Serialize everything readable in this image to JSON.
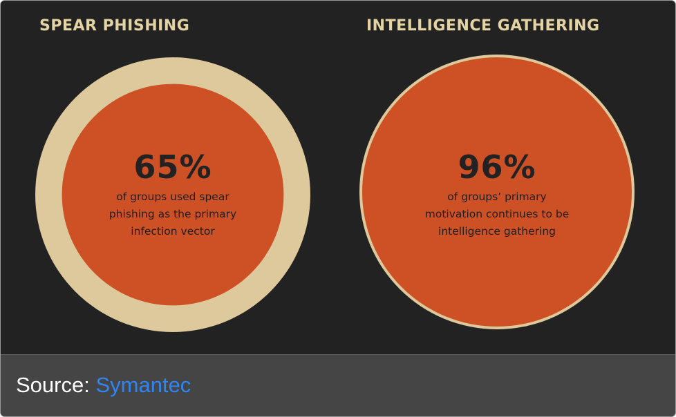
{
  "colors": {
    "background": "#222222",
    "ring": "#ddc99b",
    "fill": "#cd5125",
    "title_text": "#e4d4a4",
    "caption_bar": "#454545",
    "link": "#2f86f2"
  },
  "chart_data": [
    {
      "type": "pie",
      "title": "SPEAR PHISHING",
      "value": 65,
      "value_label": "65%",
      "caption_lines": [
        "of groups used spear",
        "phishing as the primary",
        "infection vector"
      ]
    },
    {
      "type": "pie",
      "title": "INTELLIGENCE GATHERING",
      "value": 96,
      "value_label": "96%",
      "caption_lines": [
        "of groups’ primary",
        "motivation continues to be",
        "intelligence gathering"
      ]
    }
  ],
  "source": {
    "label": "Source:",
    "link_text": "Symantec"
  }
}
